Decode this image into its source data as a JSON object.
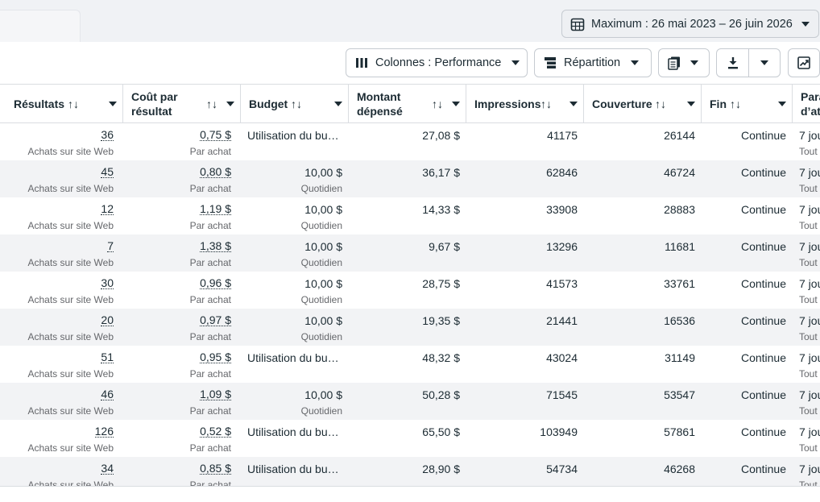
{
  "date_range": {
    "label": "Maximum : 26 mai 2023 – 26 juin 2026"
  },
  "toolbar": {
    "columns_label": "Colonnes : Performance",
    "breakdown_label": "Répartition"
  },
  "icons": {
    "calendar": "calendar-icon",
    "columns": "columns-icon",
    "breakdown": "breakdown-icon",
    "reports": "reports-icon",
    "download": "download-icon",
    "chart": "chart-trend-icon",
    "caret": "caret-down-icon"
  },
  "headers": {
    "results": "Résultats",
    "cost_line1": "Coût par",
    "cost_line2": "résultat",
    "budget": "Budget",
    "spent_line1": "Montant",
    "spent_line2": "dépensé",
    "impressions": "Impressions",
    "reach": "Couverture",
    "end": "Fin",
    "attr_line1": "Para",
    "attr_line2": "d’at",
    "sort_symbol": "↑↓"
  },
  "rows": [
    {
      "results": "36",
      "results_sub": "Achats sur site Web",
      "cost": "0,75 $",
      "cost_sub": "Par achat",
      "budget": "Utilisation du bu…",
      "budget_sub": "",
      "spent": "27,08 $",
      "impressions": "41175",
      "reach": "26144",
      "end": "Continue",
      "attr": "7 jou",
      "attr_sub": "Tout"
    },
    {
      "results": "45",
      "results_sub": "Achats sur site Web",
      "cost": "0,80 $",
      "cost_sub": "Par achat",
      "budget": "10,00 $",
      "budget_sub": "Quotidien",
      "spent": "36,17 $",
      "impressions": "62846",
      "reach": "46724",
      "end": "Continue",
      "attr": "7 jou",
      "attr_sub": "Tout"
    },
    {
      "results": "12",
      "results_sub": "Achats sur site Web",
      "cost": "1,19 $",
      "cost_sub": "Par achat",
      "budget": "10,00 $",
      "budget_sub": "Quotidien",
      "spent": "14,33 $",
      "impressions": "33908",
      "reach": "28883",
      "end": "Continue",
      "attr": "7 jou",
      "attr_sub": "Tout"
    },
    {
      "results": "7",
      "results_sub": "Achats sur site Web",
      "cost": "1,38 $",
      "cost_sub": "Par achat",
      "budget": "10,00 $",
      "budget_sub": "Quotidien",
      "spent": "9,67 $",
      "impressions": "13296",
      "reach": "11681",
      "end": "Continue",
      "attr": "7 jou",
      "attr_sub": "Tout"
    },
    {
      "results": "30",
      "results_sub": "Achats sur site Web",
      "cost": "0,96 $",
      "cost_sub": "Par achat",
      "budget": "10,00 $",
      "budget_sub": "Quotidien",
      "spent": "28,75 $",
      "impressions": "41573",
      "reach": "33761",
      "end": "Continue",
      "attr": "7 jou",
      "attr_sub": "Tout"
    },
    {
      "results": "20",
      "results_sub": "Achats sur site Web",
      "cost": "0,97 $",
      "cost_sub": "Par achat",
      "budget": "10,00 $",
      "budget_sub": "Quotidien",
      "spent": "19,35 $",
      "impressions": "21441",
      "reach": "16536",
      "end": "Continue",
      "attr": "7 jou",
      "attr_sub": "Tout"
    },
    {
      "results": "51",
      "results_sub": "Achats sur site Web",
      "cost": "0,95 $",
      "cost_sub": "Par achat",
      "budget": "Utilisation du bu…",
      "budget_sub": "",
      "spent": "48,32 $",
      "impressions": "43024",
      "reach": "31149",
      "end": "Continue",
      "attr": "7 jou",
      "attr_sub": "Tout"
    },
    {
      "results": "46",
      "results_sub": "Achats sur site Web",
      "cost": "1,09 $",
      "cost_sub": "Par achat",
      "budget": "10,00 $",
      "budget_sub": "Quotidien",
      "spent": "50,28 $",
      "impressions": "71545",
      "reach": "53547",
      "end": "Continue",
      "attr": "7 jou",
      "attr_sub": "Tout"
    },
    {
      "results": "126",
      "results_sub": "Achats sur site Web",
      "cost": "0,52 $",
      "cost_sub": "Par achat",
      "budget": "Utilisation du bu…",
      "budget_sub": "",
      "spent": "65,50 $",
      "impressions": "103949",
      "reach": "57861",
      "end": "Continue",
      "attr": "7 jou",
      "attr_sub": "Tout"
    },
    {
      "results": "34",
      "results_sub": "Achats sur site Web",
      "cost": "0,85 $",
      "cost_sub": "Par achat",
      "budget": "Utilisation du bu…",
      "budget_sub": "",
      "spent": "28,90 $",
      "impressions": "54734",
      "reach": "46268",
      "end": "Continue",
      "attr": "7 jou",
      "attr_sub": "Tout"
    }
  ]
}
